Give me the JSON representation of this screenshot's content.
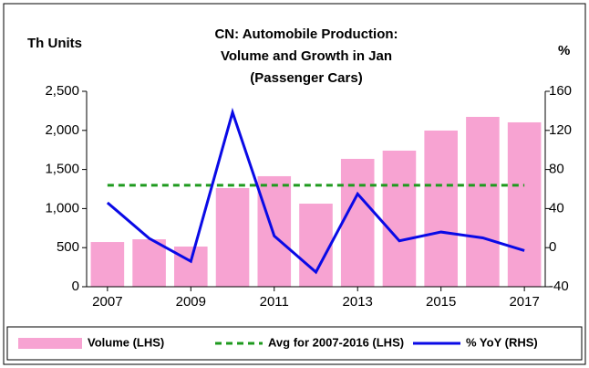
{
  "chart_data": {
    "type": "bar-line",
    "title": [
      "CN: Automobile Production:",
      "Volume and Growth in Jan",
      "(Passenger Cars)"
    ],
    "y_label": "Th Units",
    "y2_label": "%",
    "x": [
      2007,
      2008,
      2009,
      2010,
      2011,
      2012,
      2013,
      2014,
      2015,
      2016,
      2017
    ],
    "xlim": [
      2006.5,
      2017.5
    ],
    "xticks": [
      2007,
      2009,
      2011,
      2013,
      2015,
      2017
    ],
    "ylim": [
      0,
      2500
    ],
    "yticks": [
      0,
      500,
      {
        "value": 1000,
        "label": "1,000"
      },
      {
        "value": 1500,
        "label": "1,500"
      },
      {
        "value": 2000,
        "label": "2,000"
      },
      {
        "value": 2500,
        "label": "2,500"
      }
    ],
    "y2lim": [
      -40,
      160
    ],
    "y2ticks": [
      -40,
      0,
      40,
      80,
      120,
      160
    ],
    "series": [
      {
        "name": "Volume (LHS)",
        "type": "bar",
        "color": "#f7a3d2",
        "values": [
          572,
          607,
          514,
          1262,
          1414,
          1063,
          1636,
          1741,
          1998,
          2173,
          2103
        ]
      },
      {
        "name": "Avg for 2007-2016 (LHS)",
        "type": "dashed",
        "color": "#1e9a1e",
        "values": [
          1298,
          1298,
          1298,
          1298,
          1298,
          1298,
          1298,
          1298,
          1298,
          1298,
          1298
        ]
      },
      {
        "name": "% YoY (RHS)",
        "type": "line",
        "axis": "y2",
        "color": "#0a0ae6",
        "values": [
          46,
          9.5,
          -14,
          138.5,
          12,
          -25,
          55,
          7,
          16,
          10,
          -3
        ]
      }
    ]
  }
}
